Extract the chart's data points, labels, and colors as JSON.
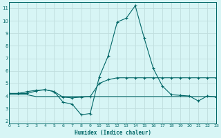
{
  "xlabel": "Humidex (Indice chaleur)",
  "x": [
    0,
    1,
    2,
    3,
    4,
    5,
    6,
    7,
    8,
    9,
    10,
    11,
    12,
    13,
    14,
    15,
    16,
    17,
    18,
    19,
    20,
    21,
    22,
    23
  ],
  "line1": [
    4.2,
    4.2,
    4.2,
    4.4,
    4.5,
    4.35,
    3.5,
    3.35,
    2.5,
    2.6,
    5.5,
    7.2,
    9.9,
    10.2,
    11.2,
    8.6,
    6.2,
    4.8,
    4.1,
    4.05,
    4.0,
    3.6,
    4.0,
    3.9
  ],
  "line2": [
    4.1,
    4.1,
    4.1,
    3.95,
    3.95,
    3.95,
    3.95,
    3.95,
    3.95,
    3.95,
    3.95,
    3.95,
    3.95,
    3.95,
    3.95,
    3.95,
    3.95,
    3.95,
    3.95,
    3.95,
    3.95,
    3.95,
    3.95,
    3.95
  ],
  "line3": [
    4.2,
    4.2,
    4.35,
    4.45,
    4.5,
    4.35,
    3.9,
    3.85,
    3.9,
    3.95,
    5.0,
    5.3,
    5.45,
    5.45,
    5.45,
    5.45,
    5.45,
    5.45,
    5.45,
    5.45,
    5.45,
    5.45,
    5.45,
    5.45
  ],
  "line_color": "#006666",
  "bg_color": "#d7f5f5",
  "grid_color": "#c0dede",
  "ylim": [
    1.8,
    11.5
  ],
  "yticks": [
    2,
    3,
    4,
    5,
    6,
    7,
    8,
    9,
    10,
    11
  ],
  "xlim": [
    0,
    23
  ],
  "marker": "+"
}
